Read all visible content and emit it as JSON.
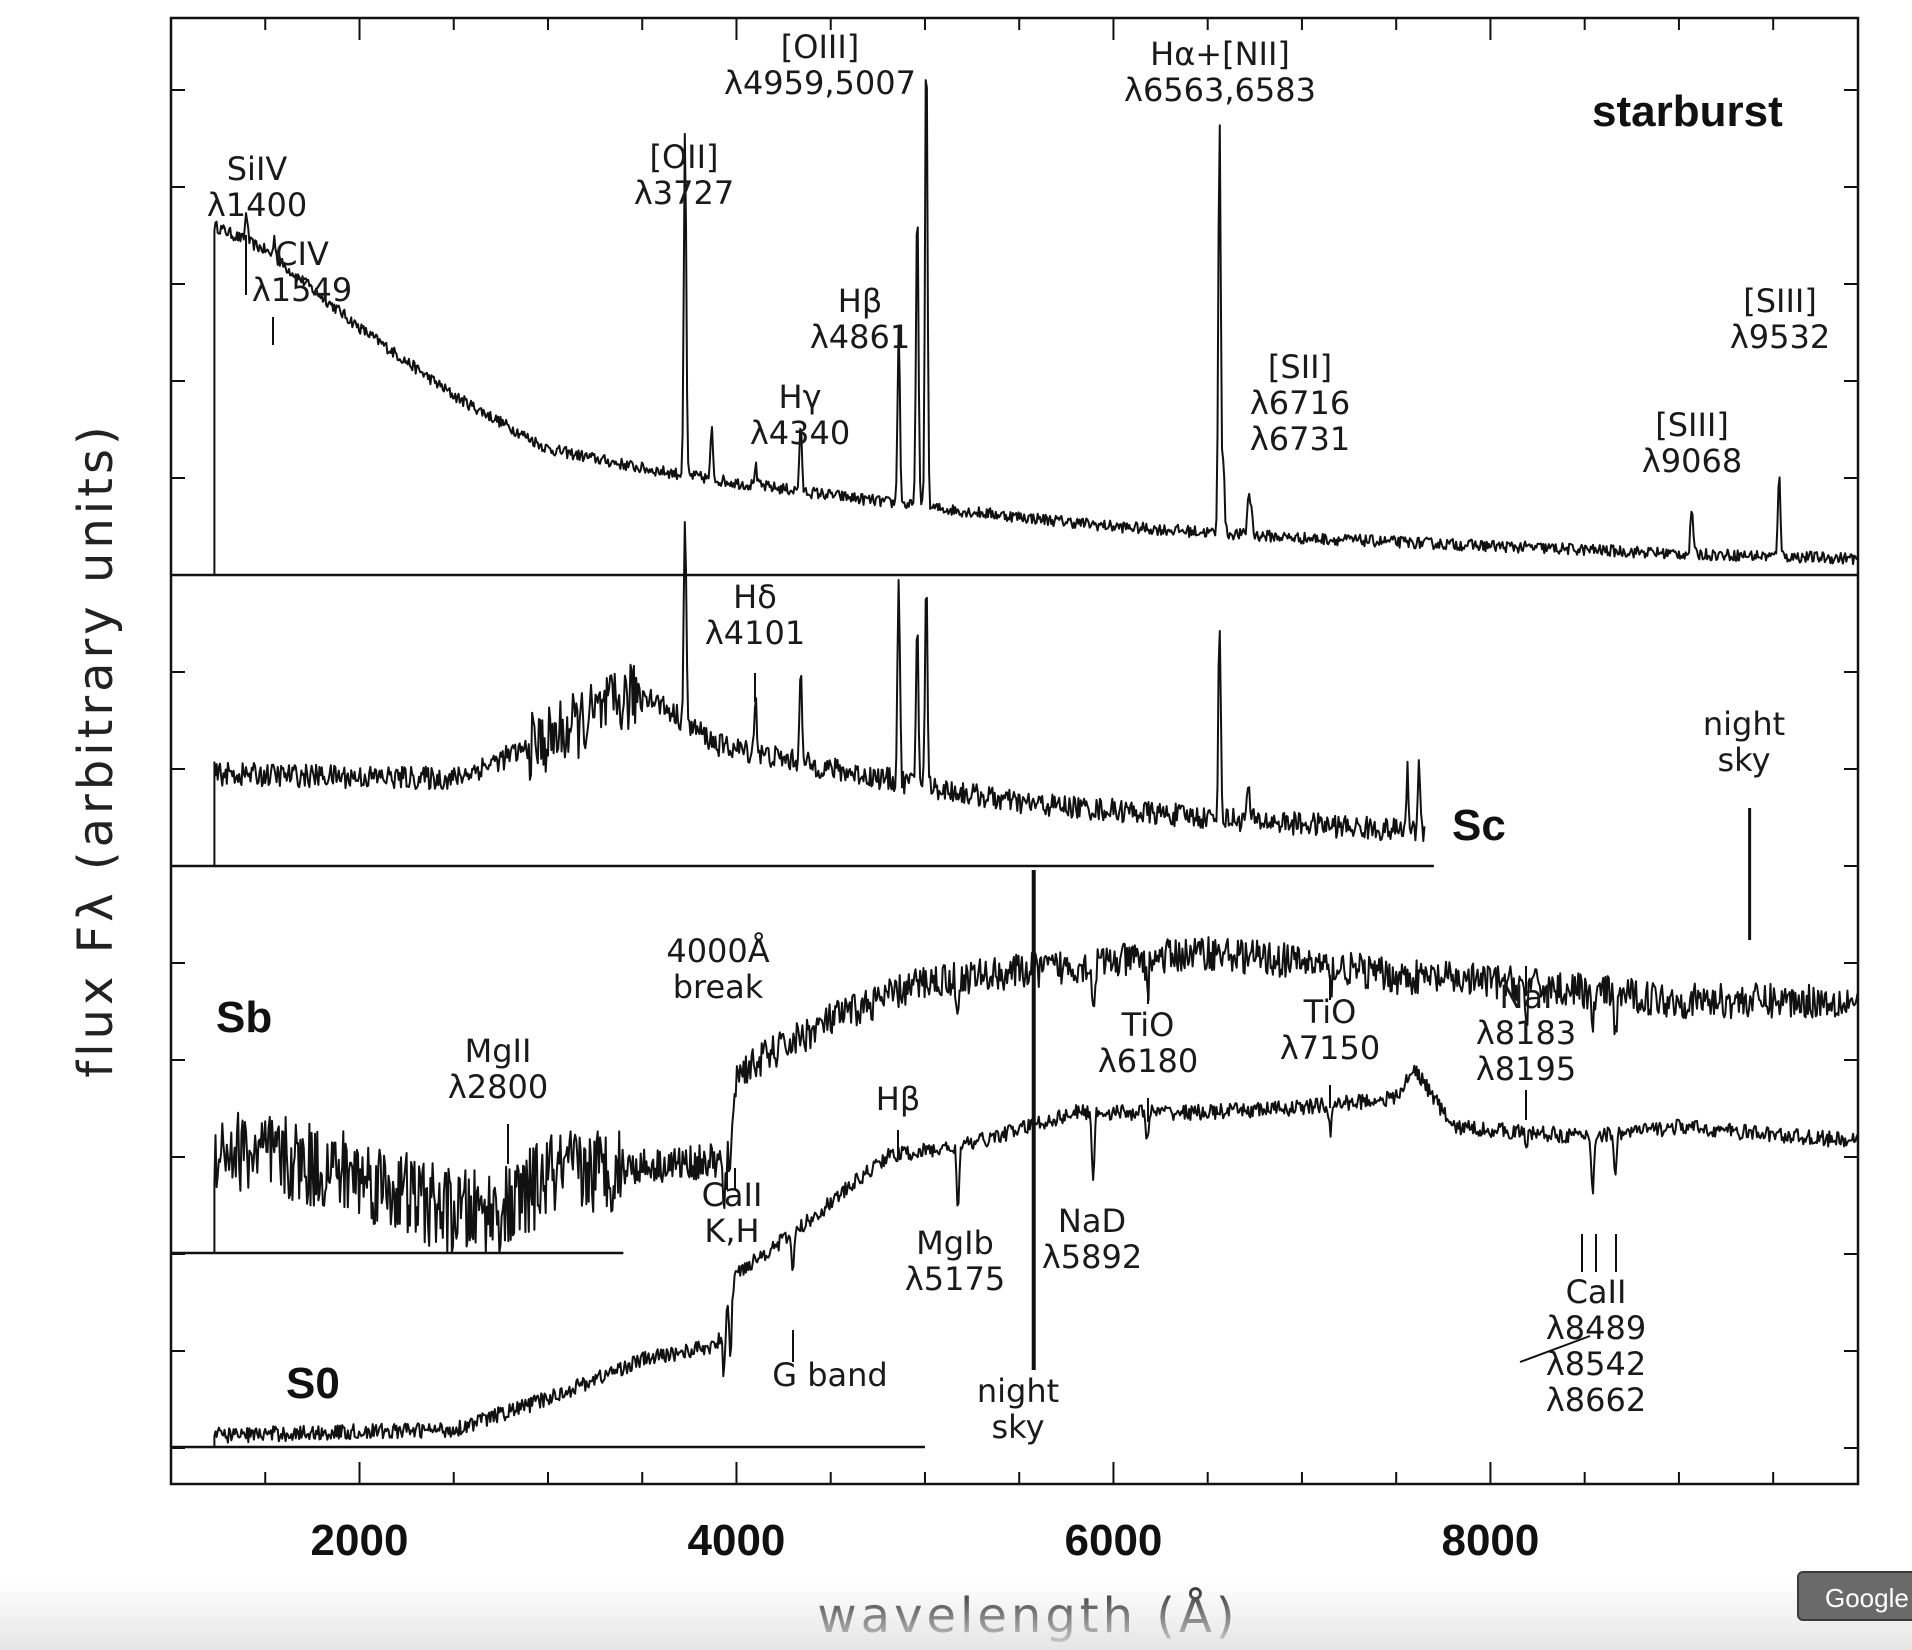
{
  "chart_data": {
    "type": "line",
    "title": "",
    "xlabel": "wavelength (Å)",
    "ylabel": "flux Fλ (arbitrary units)",
    "xlim": [
      1000,
      9950
    ],
    "x_ticks": [
      2000,
      4000,
      6000,
      8000
    ],
    "grid": false,
    "series": [
      {
        "name": "starburst",
        "wavelength_range": [
          1230,
          9950
        ],
        "continuum": [
          [
            1230,
            3.6
          ],
          [
            1500,
            3.35
          ],
          [
            2000,
            2.55
          ],
          [
            2500,
            1.85
          ],
          [
            3000,
            1.3
          ],
          [
            3500,
            1.1
          ],
          [
            4000,
            0.95
          ],
          [
            5000,
            0.7
          ],
          [
            6000,
            0.5
          ],
          [
            7000,
            0.38
          ],
          [
            8000,
            0.3
          ],
          [
            9000,
            0.22
          ],
          [
            9950,
            0.17
          ]
        ],
        "emission_lines": [
          [
            1400,
            0.3
          ],
          [
            1549,
            0.2
          ],
          [
            3727,
            3.5
          ],
          [
            3869,
            0.5
          ],
          [
            4101,
            0.2
          ],
          [
            4340,
            0.7
          ],
          [
            4861,
            1.8
          ],
          [
            4959,
            3.2
          ],
          [
            5007,
            4.9
          ],
          [
            6563,
            4.3
          ],
          [
            6583,
            0.7
          ],
          [
            6716,
            0.4
          ],
          [
            6731,
            0.3
          ],
          [
            9068,
            0.5
          ],
          [
            9532,
            0.9
          ]
        ]
      },
      {
        "name": "Sc",
        "wavelength_range": [
          1230,
          7650
        ],
        "continuum": [
          [
            1230,
            0.95
          ],
          [
            2500,
            0.9
          ],
          [
            3000,
            1.3
          ],
          [
            3500,
            1.8
          ],
          [
            3900,
            1.25
          ],
          [
            4500,
            1.0
          ],
          [
            5500,
            0.65
          ],
          [
            6500,
            0.5
          ],
          [
            7650,
            0.35
          ]
        ],
        "emission_lines": [
          [
            3727,
            2.1
          ],
          [
            4101,
            0.6
          ],
          [
            4340,
            1.0
          ],
          [
            4861,
            2.1
          ],
          [
            4959,
            1.7
          ],
          [
            5007,
            2.1
          ],
          [
            6563,
            2.0
          ],
          [
            6716,
            0.4
          ],
          [
            7560,
            0.6
          ],
          [
            7620,
            0.7
          ]
        ]
      },
      {
        "name": "Sb",
        "wavelength_range": [
          1230,
          9950
        ],
        "continuum": [
          [
            1230,
            1.1
          ],
          [
            2000,
            0.8
          ],
          [
            2500,
            0.4
          ],
          [
            2800,
            0.45
          ],
          [
            3000,
            0.8
          ],
          [
            3500,
            0.9
          ],
          [
            3950,
            0.95
          ],
          [
            4000,
            1.85
          ],
          [
            4500,
            2.4
          ],
          [
            5000,
            2.8
          ],
          [
            5500,
            2.9
          ],
          [
            6000,
            3.0
          ],
          [
            6500,
            3.1
          ],
          [
            7000,
            3.0
          ],
          [
            7500,
            2.85
          ],
          [
            8000,
            2.8
          ],
          [
            8500,
            2.7
          ],
          [
            9000,
            2.6
          ],
          [
            9950,
            2.6
          ]
        ],
        "absorption_features": [
          [
            3933,
            -0.5
          ],
          [
            3968,
            -0.5
          ],
          [
            5175,
            -0.5
          ],
          [
            5892,
            -0.5
          ],
          [
            6180,
            -0.4
          ],
          [
            7150,
            -0.3
          ],
          [
            8190,
            -0.4
          ],
          [
            8542,
            -0.5
          ],
          [
            8662,
            -0.5
          ]
        ]
      },
      {
        "name": "S0",
        "wavelength_range": [
          1230,
          9950
        ],
        "continuum": [
          [
            1230,
            0.12
          ],
          [
            2500,
            0.18
          ],
          [
            3000,
            0.5
          ],
          [
            3500,
            0.9
          ],
          [
            3900,
            1.05
          ],
          [
            4000,
            1.8
          ],
          [
            4300,
            2.2
          ],
          [
            4800,
            3.0
          ],
          [
            5200,
            3.1
          ],
          [
            5800,
            3.45
          ],
          [
            6500,
            3.45
          ],
          [
            7000,
            3.5
          ],
          [
            7500,
            3.6
          ],
          [
            7600,
            3.9
          ],
          [
            7800,
            3.3
          ],
          [
            8500,
            3.2
          ],
          [
            9000,
            3.3
          ],
          [
            9950,
            3.15
          ]
        ],
        "absorption_features": [
          [
            3933,
            -0.6
          ],
          [
            3968,
            -0.6
          ],
          [
            4300,
            -0.4
          ],
          [
            5175,
            -0.6
          ],
          [
            5892,
            -0.7
          ],
          [
            6180,
            -0.3
          ],
          [
            7150,
            -0.3
          ],
          [
            8190,
            -0.2
          ],
          [
            8542,
            -0.6
          ],
          [
            8662,
            -0.4
          ]
        ]
      }
    ],
    "sample_labels": [
      "starburst",
      "Sc",
      "Sb",
      "S0"
    ],
    "night_sky": [
      5577,
      9375
    ],
    "annotations": [
      {
        "lines": [
          "SiIV",
          "λ1400"
        ]
      },
      {
        "lines": [
          "CIV",
          "λ1549"
        ]
      },
      {
        "lines": [
          "[OII]",
          "λ3727"
        ]
      },
      {
        "lines": [
          "[OIII]",
          "λ4959,5007"
        ]
      },
      {
        "lines": [
          "Hγ",
          "λ4340"
        ]
      },
      {
        "lines": [
          "Hβ",
          "λ4861"
        ]
      },
      {
        "lines": [
          "Hα+[NII]",
          "λ6563,6583"
        ]
      },
      {
        "lines": [
          "[SII]",
          "λ6716",
          "λ6731"
        ]
      },
      {
        "lines": [
          "[SIII]",
          "λ9068"
        ]
      },
      {
        "lines": [
          "[SIII]",
          "λ9532"
        ]
      },
      {
        "lines": [
          "Hδ",
          "λ4101"
        ]
      },
      {
        "lines": [
          "night",
          "sky"
        ]
      },
      {
        "lines": [
          "4000Å",
          "break"
        ]
      },
      {
        "lines": [
          "MgII",
          "λ2800"
        ]
      },
      {
        "lines": [
          "Hβ"
        ]
      },
      {
        "lines": [
          "TiO",
          "λ6180"
        ]
      },
      {
        "lines": [
          "TiO",
          "λ7150"
        ]
      },
      {
        "lines": [
          "NaI",
          "λ8183",
          "λ8195"
        ]
      },
      {
        "lines": [
          "CaII",
          "K,H"
        ]
      },
      {
        "lines": [
          "MgIb",
          "λ5175"
        ]
      },
      {
        "lines": [
          "NaD",
          "λ5892"
        ]
      },
      {
        "lines": [
          "G  band"
        ]
      },
      {
        "lines": [
          "night",
          "sky"
        ]
      },
      {
        "lines": [
          "CaII",
          "λ8489",
          "λ8542",
          "λ8662"
        ]
      }
    ]
  },
  "ui": {
    "translate_button_label": "Google"
  }
}
